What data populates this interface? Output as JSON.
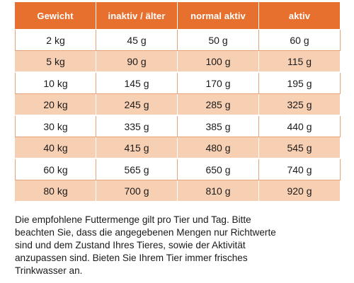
{
  "table": {
    "headers": [
      "Gewicht",
      "inaktiv / älter",
      "normal aktiv",
      "aktiv"
    ],
    "rows": [
      [
        "2 kg",
        "45 g",
        "50 g",
        "60 g"
      ],
      [
        "5 kg",
        "90 g",
        "100 g",
        "115 g"
      ],
      [
        "10 kg",
        "145 g",
        "170 g",
        "195 g"
      ],
      [
        "20 kg",
        "245 g",
        "285 g",
        "325 g"
      ],
      [
        "30 kg",
        "335 g",
        "385 g",
        "440 g"
      ],
      [
        "40 kg",
        "415 g",
        "480 g",
        "545 g"
      ],
      [
        "60 kg",
        "565 g",
        "650 g",
        "740 g"
      ],
      [
        "80 kg",
        "700 g",
        "810 g",
        "920 g"
      ]
    ]
  },
  "note": {
    "lines": [
      "Die empfohlene Futtermenge gilt pro Tier und Tag. Bitte",
      "beachten Sie, dass die angegebenen Mengen nur Richtwerte",
      "sind und dem Zustand Ihres Tieres, sowie der Aktivität",
      "anzupassen sind. Bieten Sie Ihrem Tier immer frisches",
      "Trinkwasser an."
    ]
  },
  "colors": {
    "header_bg": "#e8702e",
    "stripe_bg": "#f7cfb3",
    "row_bg": "#ffffff"
  }
}
